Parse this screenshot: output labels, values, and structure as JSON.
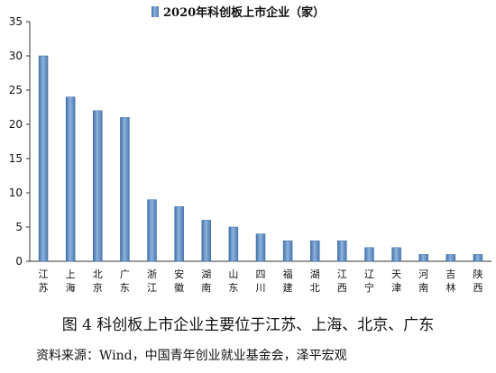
{
  "chart_data": {
    "type": "bar",
    "legend": "2020年科创板上市企业（家）",
    "legend_position": "top-center",
    "categories": [
      "江苏",
      "上海",
      "北京",
      "广东",
      "浙江",
      "安徽",
      "湖南",
      "山东",
      "四川",
      "福建",
      "湖北",
      "江西",
      "辽宁",
      "天津",
      "河南",
      "吉林",
      "陕西"
    ],
    "values": [
      30,
      24,
      22,
      21,
      9,
      8,
      6,
      5,
      4,
      3,
      3,
      3,
      2,
      2,
      1,
      1,
      1
    ],
    "yticks": [
      0,
      5,
      10,
      15,
      20,
      25,
      30,
      35
    ],
    "ylim": [
      0,
      35
    ],
    "grid": false,
    "bar_color": "#5b89c0"
  },
  "caption": "图 4  科创板上市企业主要位于江苏、上海、北京、广东",
  "source": "资料来源：Wind，中国青年创业就业基金会，泽平宏观"
}
